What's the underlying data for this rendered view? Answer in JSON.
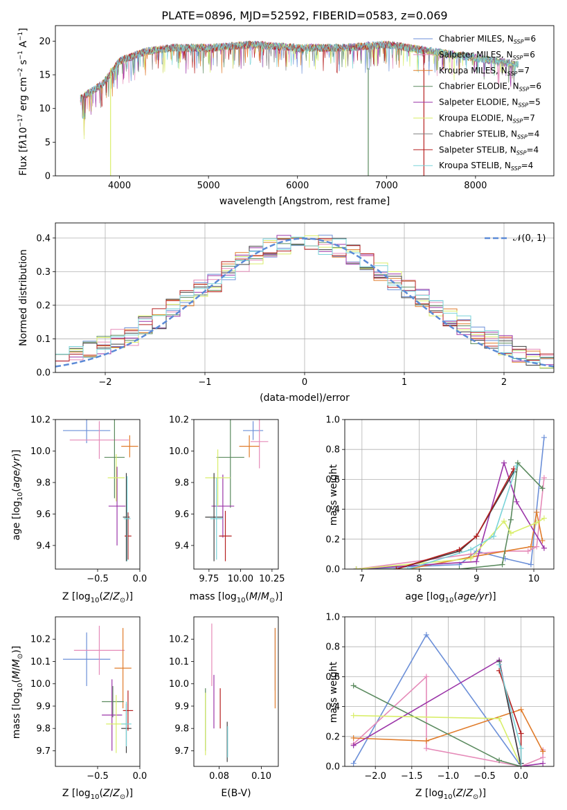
{
  "colors": [
    "#6b8fd8",
    "#e58ab8",
    "#e07b2a",
    "#5a8a5e",
    "#9b34a8",
    "#d9ee6a",
    "#3d3d3d",
    "#b51f1f",
    "#79d3d8"
  ],
  "spectrum_colors": [
    "#6b8fd8",
    "#e58ab8",
    "#e07b2a",
    "#5a8a5e",
    "#9b34a8",
    "#d9ee6a",
    "#808080",
    "#b51f1f",
    "#79d3d8"
  ],
  "chart_data": [
    {
      "id": "spectrum",
      "type": "line",
      "title": "PLATE=0896, MJD=52592, FIBERID=0583, z=0.069",
      "xlabel": "wavelength [Angstrom, rest frame]",
      "ylabel": "Flux [f_λ 10^-17 erg cm^-2 s^-1 A^-1]",
      "xlim": [
        3280,
        8880
      ],
      "ylim": [
        0,
        22.3
      ],
      "xticks": [
        "4000",
        "5000",
        "6000",
        "7000",
        "8000"
      ],
      "yticks": [
        "0",
        "5",
        "10",
        "15",
        "20"
      ],
      "legend_position": "right",
      "legend": [
        "Chabrier MILES, N_SSP=6",
        "Salpeter MILES, N_SSP=6",
        "Kroupa MILES, N_SSP=7",
        "Chabrier ELODIE, N_SSP=6",
        "Salpeter ELODIE, N_SSP=5",
        "Kroupa ELODIE, N_SSP=7",
        "Chabrier STELIB, N_SSP=4",
        "Salpeter STELIB, N_SSP=4",
        "Kroupa STELIB, N_SSP=4"
      ],
      "continuum": {
        "x": [
          3560,
          3800,
          4000,
          4300,
          4600,
          5000,
          5500,
          6000,
          6500,
          7000,
          7500,
          8000,
          8500
        ],
        "y": [
          11.5,
          13.5,
          17.0,
          18.5,
          19.0,
          19.0,
          19.5,
          19.0,
          19.0,
          19.5,
          18.5,
          17.5,
          16.5
        ]
      },
      "absorption_lines": [
        {
          "x": 3900,
          "depth_to": 0
        },
        {
          "x": 6795,
          "depth_to": 0
        },
        {
          "x": 7420,
          "depth_to": 0
        }
      ]
    },
    {
      "id": "residual_histogram",
      "type": "bar",
      "xlabel": "(data-model)/error",
      "ylabel": "Normed distribution",
      "xlim": [
        -2.5,
        2.5
      ],
      "ylim": [
        0,
        0.445
      ],
      "xticks": [
        "−2",
        "−1",
        "0",
        "1",
        "2"
      ],
      "yticks": [
        "0.0",
        "0.1",
        "0.2",
        "0.3",
        "0.4"
      ],
      "grid": true,
      "legend_position": "top-right",
      "reference_curve": {
        "name": "𝒩(0, 1)",
        "mean": 0,
        "sigma": 1
      },
      "bins": 36,
      "series_ref": [
        0.04,
        0.05,
        0.07,
        0.08,
        0.1,
        0.11,
        0.14,
        0.16,
        0.19,
        0.22,
        0.25,
        0.27,
        0.3,
        0.33,
        0.35,
        0.37,
        0.38,
        0.39,
        0.39,
        0.38,
        0.37,
        0.35,
        0.33,
        0.3,
        0.27,
        0.25,
        0.22,
        0.19,
        0.16,
        0.14,
        0.11,
        0.1,
        0.08,
        0.06,
        0.05,
        0.04
      ]
    },
    {
      "id": "age_vs_Z",
      "type": "scatter",
      "xlabel": "Z [log10(Z/Z⊙)]",
      "ylabel": "age [log10(age/yr)]",
      "xlim": [
        -1.0,
        0.0
      ],
      "ylim": [
        9.25,
        10.2
      ],
      "xticks": [
        "−0.5",
        "0.0"
      ],
      "yticks": [
        "9.4",
        "9.6",
        "9.8",
        "10.0",
        "10.2"
      ],
      "points": [
        {
          "x": -0.63,
          "y": 10.13,
          "xerr": 0.28,
          "yerr": 0.08
        },
        {
          "x": -0.48,
          "y": 10.07,
          "xerr": 0.35,
          "yerr": 0.12
        },
        {
          "x": -0.12,
          "y": 10.03,
          "xerr": 0.1,
          "yerr": 0.07
        },
        {
          "x": -0.3,
          "y": 9.96,
          "xerr": 0.12,
          "yerr": 0.26
        },
        {
          "x": -0.27,
          "y": 9.65,
          "xerr": 0.1,
          "yerr": 0.25
        },
        {
          "x": -0.28,
          "y": 9.83,
          "xerr": 0.1,
          "yerr": 0.15
        },
        {
          "x": -0.16,
          "y": 9.58,
          "xerr": 0.04,
          "yerr": 0.28
        },
        {
          "x": -0.14,
          "y": 9.46,
          "xerr": 0.04,
          "yerr": 0.15
        },
        {
          "x": -0.15,
          "y": 9.57,
          "xerr": 0.04,
          "yerr": 0.27
        }
      ]
    },
    {
      "id": "age_vs_mass",
      "type": "scatter",
      "xlabel": "mass [log10(M/M⊙)]",
      "xlim": [
        9.63,
        10.3
      ],
      "ylim": [
        9.25,
        10.2
      ],
      "xticks": [
        "9.75",
        "10.00",
        "10.25"
      ],
      "yticks": [
        "9.4",
        "9.6",
        "9.8",
        "10.0",
        "10.2"
      ],
      "points": [
        {
          "x": 10.1,
          "y": 10.13,
          "xerr": 0.08,
          "yerr": 0.06
        },
        {
          "x": 10.15,
          "y": 10.06,
          "xerr": 0.07,
          "yerr": 0.17
        },
        {
          "x": 10.07,
          "y": 10.03,
          "xerr": 0.08,
          "yerr": 0.07
        },
        {
          "x": 9.92,
          "y": 9.96,
          "xerr": 0.11,
          "yerr": 0.32
        },
        {
          "x": 9.86,
          "y": 9.65,
          "xerr": 0.09,
          "yerr": 0.2
        },
        {
          "x": 9.82,
          "y": 9.83,
          "xerr": 0.1,
          "yerr": 0.18
        },
        {
          "x": 9.79,
          "y": 9.58,
          "xerr": 0.07,
          "yerr": 0.28
        },
        {
          "x": 9.88,
          "y": 9.46,
          "xerr": 0.05,
          "yerr": 0.16
        },
        {
          "x": 9.81,
          "y": 9.57,
          "xerr": 0.05,
          "yerr": 0.26
        }
      ]
    },
    {
      "id": "weight_vs_age",
      "type": "line",
      "xlabel": "age [log10(age/yr)]",
      "ylabel": "mass weight",
      "xlim": [
        6.7,
        10.35
      ],
      "ylim": [
        0,
        1.0
      ],
      "xticks": [
        "7",
        "8",
        "9",
        "10"
      ],
      "yticks": [
        "0.0",
        "0.2",
        "0.4",
        "0.6",
        "0.8",
        "1.0"
      ],
      "grid": true,
      "series": [
        {
          "x": [
            6.9,
            8.7,
            9.0,
            9.5,
            9.95,
            10.18
          ],
          "y": [
            0.0,
            0.03,
            0.12,
            0.07,
            0.03,
            0.88
          ]
        },
        {
          "x": [
            6.9,
            8.9,
            9.5,
            9.9,
            10.05,
            10.18
          ],
          "y": [
            0.0,
            0.1,
            0.12,
            0.12,
            0.15,
            0.61
          ]
        },
        {
          "x": [
            7.8,
            8.9,
            9.5,
            9.95,
            10.05,
            10.15
          ],
          "y": [
            0.0,
            0.08,
            0.12,
            0.15,
            0.38,
            0.19
          ]
        },
        {
          "x": [
            6.9,
            8.7,
            9.45,
            9.6,
            9.72,
            10.15
          ],
          "y": [
            0.0,
            0.0,
            0.03,
            0.33,
            0.71,
            0.54
          ]
        },
        {
          "x": [
            6.9,
            9.0,
            9.48,
            9.7,
            10.18
          ],
          "y": [
            0.0,
            0.05,
            0.71,
            0.45,
            0.14
          ]
        },
        {
          "x": [
            6.9,
            8.9,
            9.48,
            9.6,
            10.05,
            10.18
          ],
          "y": [
            0.0,
            0.07,
            0.32,
            0.24,
            0.31,
            0.34
          ]
        },
        {
          "x": [
            7.6,
            8.7,
            9.0,
            9.65
          ],
          "y": [
            0.0,
            0.12,
            0.22,
            0.65
          ]
        },
        {
          "x": [
            7.6,
            8.7,
            9.0,
            9.65
          ],
          "y": [
            0.0,
            0.13,
            0.22,
            0.67
          ]
        },
        {
          "x": [
            7.8,
            8.9,
            9.3,
            9.7
          ],
          "y": [
            0.0,
            0.13,
            0.22,
            0.69
          ]
        }
      ]
    },
    {
      "id": "mass_vs_Z",
      "type": "scatter",
      "xlabel": "Z [log10(Z/Z⊙)]",
      "ylabel": "mass [log10(M/M⊙)]",
      "xlim": [
        -1.0,
        0.0
      ],
      "ylim": [
        9.63,
        10.3
      ],
      "xticks": [
        "−0.5",
        "0.0"
      ],
      "yticks": [
        "9.7",
        "9.8",
        "9.9",
        "10.0",
        "10.1",
        "10.2"
      ],
      "points": [
        {
          "x": -0.63,
          "y": 10.11,
          "xerr": 0.28,
          "yerr": 0.12
        },
        {
          "x": -0.48,
          "y": 10.15,
          "xerr": 0.3,
          "yerr": 0.11
        },
        {
          "x": -0.2,
          "y": 10.07,
          "xerr": 0.1,
          "yerr": 0.18
        },
        {
          "x": -0.32,
          "y": 9.92,
          "xerr": 0.13,
          "yerr": 0.07
        },
        {
          "x": -0.33,
          "y": 9.86,
          "xerr": 0.12,
          "yerr": 0.16
        },
        {
          "x": -0.28,
          "y": 9.82,
          "xerr": 0.12,
          "yerr": 0.13
        },
        {
          "x": -0.16,
          "y": 9.8,
          "xerr": 0.06,
          "yerr": 0.11
        },
        {
          "x": -0.14,
          "y": 9.88,
          "xerr": 0.06,
          "yerr": 0.09
        },
        {
          "x": -0.16,
          "y": 9.82,
          "xerr": 0.06,
          "yerr": 0.1
        }
      ]
    },
    {
      "id": "mass_vs_ebv",
      "type": "scatter",
      "xlabel": "E(B-V)",
      "xlim": [
        0.068,
        0.108
      ],
      "ylim": [
        9.63,
        10.3
      ],
      "xticks": [
        "0.08",
        "0.10"
      ],
      "yticks": [
        "9.7",
        "9.8",
        "9.9",
        "10.0",
        "10.1",
        "10.2"
      ],
      "points": [
        {
          "x": 0.1065,
          "y": 10.11,
          "xerr": 0.0,
          "yerr": 0.14
        },
        {
          "x": 0.0765,
          "y": 10.13,
          "xerr": 0.0,
          "yerr": 0.14
        },
        {
          "x": 0.1065,
          "y": 10.07,
          "xerr": 0.0,
          "yerr": 0.18
        },
        {
          "x": 0.0735,
          "y": 9.84,
          "xerr": 0.0,
          "yerr": 0.14
        },
        {
          "x": 0.0775,
          "y": 9.92,
          "xerr": 0.0,
          "yerr": 0.12
        },
        {
          "x": 0.0735,
          "y": 9.82,
          "xerr": 0.0,
          "yerr": 0.14
        },
        {
          "x": 0.0838,
          "y": 9.74,
          "xerr": 0.0,
          "yerr": 0.09
        },
        {
          "x": 0.0805,
          "y": 9.89,
          "xerr": 0.0,
          "yerr": 0.09
        },
        {
          "x": 0.084,
          "y": 9.74,
          "xerr": 0.0,
          "yerr": 0.07
        }
      ]
    },
    {
      "id": "weight_vs_Z",
      "type": "line",
      "xlabel": "Z [log10(Z/Z⊙)]",
      "ylabel": "mass weight",
      "xlim": [
        -2.42,
        0.45
      ],
      "ylim": [
        0,
        1.0
      ],
      "xticks": [
        "−2.0",
        "−1.5",
        "−1.0",
        "−0.5",
        "0.0"
      ],
      "yticks": [
        "0.0",
        "0.2",
        "0.4",
        "0.6",
        "0.8",
        "1.0"
      ],
      "grid": true,
      "series": [
        {
          "x": [
            -2.3,
            -1.3,
            0.0,
            0.0
          ],
          "y": [
            0.02,
            0.88,
            0.0,
            0.02
          ]
        },
        {
          "x": [
            -2.3,
            -1.3,
            -1.3,
            0.0,
            0.3,
            0.3
          ],
          "y": [
            0.15,
            0.6,
            0.12,
            0.0,
            0.06,
            0.11
          ]
        },
        {
          "x": [
            -2.3,
            -1.3,
            0.0,
            0.3
          ],
          "y": [
            0.19,
            0.17,
            0.38,
            0.1
          ]
        },
        {
          "x": [
            -2.3,
            -0.3,
            0.0
          ],
          "y": [
            0.54,
            0.04,
            0.0
          ]
        },
        {
          "x": [
            -2.3,
            -0.3,
            0.0,
            0.3
          ],
          "y": [
            0.14,
            0.71,
            0.0,
            0.02
          ]
        },
        {
          "x": [
            -2.3,
            -0.3,
            0.0
          ],
          "y": [
            0.34,
            0.32,
            0.0
          ]
        },
        {
          "x": [
            -0.3,
            0.0,
            0.0
          ],
          "y": [
            0.7,
            0.0,
            0.02
          ]
        },
        {
          "x": [
            -0.3,
            0.0,
            0.0
          ],
          "y": [
            0.64,
            0.22,
            0.0
          ]
        },
        {
          "x": [
            -0.3,
            0.0,
            0.0
          ],
          "y": [
            0.68,
            0.12,
            0.0
          ]
        }
      ]
    }
  ]
}
